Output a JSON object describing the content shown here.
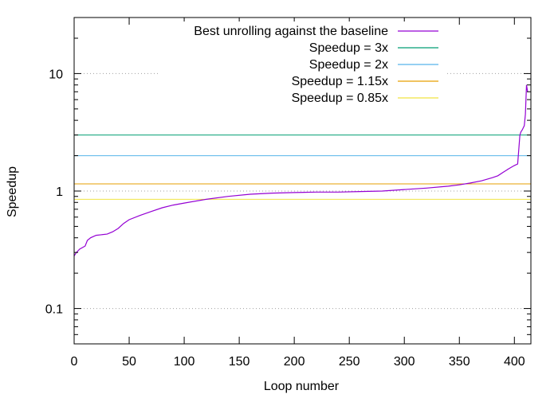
{
  "chart_data": {
    "type": "line",
    "xlabel": "Loop number",
    "ylabel": "Speedup",
    "xlim": [
      0,
      415
    ],
    "ylim": [
      0.05,
      30
    ],
    "yscale": "log",
    "grid": "y-dotted at ticks",
    "legend_position": "top-right",
    "x_ticks": [
      0,
      50,
      100,
      150,
      200,
      250,
      300,
      350,
      400
    ],
    "x_tick_labels": [
      "0",
      "50",
      "100",
      "150",
      "200",
      "250",
      "300",
      "350",
      "400"
    ],
    "y_ticks": [
      0.1,
      1,
      10
    ],
    "y_tick_labels": [
      "0.1",
      "1",
      "10"
    ],
    "series": [
      {
        "name": "Best unrolling against the baseline",
        "color": "#9400d3",
        "x": [
          0,
          2,
          5,
          10,
          12,
          15,
          20,
          30,
          35,
          40,
          45,
          50,
          60,
          70,
          80,
          90,
          100,
          120,
          140,
          160,
          180,
          200,
          220,
          240,
          260,
          280,
          300,
          320,
          340,
          350,
          360,
          370,
          380,
          385,
          390,
          395,
          400,
          403,
          405,
          406,
          407,
          409,
          410,
          411,
          412
        ],
        "values": [
          0.28,
          0.3,
          0.32,
          0.34,
          0.38,
          0.4,
          0.42,
          0.43,
          0.45,
          0.48,
          0.53,
          0.57,
          0.62,
          0.67,
          0.72,
          0.76,
          0.79,
          0.85,
          0.9,
          0.94,
          0.96,
          0.97,
          0.98,
          0.98,
          0.99,
          1.0,
          1.03,
          1.06,
          1.1,
          1.13,
          1.17,
          1.22,
          1.3,
          1.35,
          1.45,
          1.55,
          1.65,
          1.7,
          3.0,
          3.2,
          3.3,
          3.6,
          4.5,
          8.0,
          7.0
        ]
      },
      {
        "name": "Speedup = 3x",
        "color": "#009e73",
        "constant": 3
      },
      {
        "name": "Speedup = 2x",
        "color": "#56b4e9",
        "constant": 2
      },
      {
        "name": "Speedup = 1.15x",
        "color": "#e69f00",
        "constant": 1.15
      },
      {
        "name": "Speedup = 0.85x",
        "color": "#f0e442",
        "constant": 0.85
      }
    ]
  }
}
